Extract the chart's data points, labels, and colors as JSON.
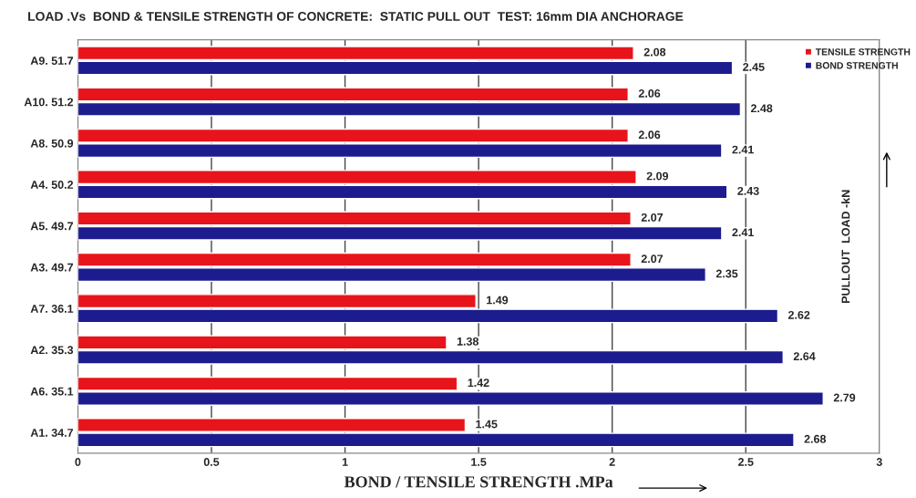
{
  "chart_data": {
    "type": "bar",
    "orientation": "horizontal",
    "title": "LOAD .Vs  BOND & TENSILE STRENGTH OF CONCRETE:  STATIC PULL OUT  TEST: 16mm DIA ANCHORAGE",
    "xlabel": "BOND / TENSILE STRENGTH .MPa",
    "ylabel": "PULLOUT  LOAD -kN",
    "categories": [
      "A9. 51.7",
      "A10. 51.2",
      "A8. 50.9",
      "A4. 50.2",
      "A5. 49.7",
      "A3. 49.7",
      "A7. 36.1",
      "A2. 35.3",
      "A6. 35.1",
      "A1. 34.7"
    ],
    "series": [
      {
        "name": "TENSILE STRENGTH",
        "color": "#e8141b",
        "values": [
          2.08,
          2.06,
          2.06,
          2.09,
          2.07,
          2.07,
          1.49,
          1.38,
          1.42,
          1.45
        ]
      },
      {
        "name": "BOND STRENGTH",
        "color": "#1c1c8f",
        "values": [
          2.45,
          2.48,
          2.41,
          2.43,
          2.41,
          2.35,
          2.62,
          2.64,
          2.79,
          2.68
        ]
      }
    ],
    "xlim": [
      0,
      3
    ],
    "xticks": [
      0,
      0.5,
      1,
      1.5,
      2,
      2.5,
      3
    ],
    "grid": "x",
    "legend": "top right",
    "data_labels": true
  }
}
